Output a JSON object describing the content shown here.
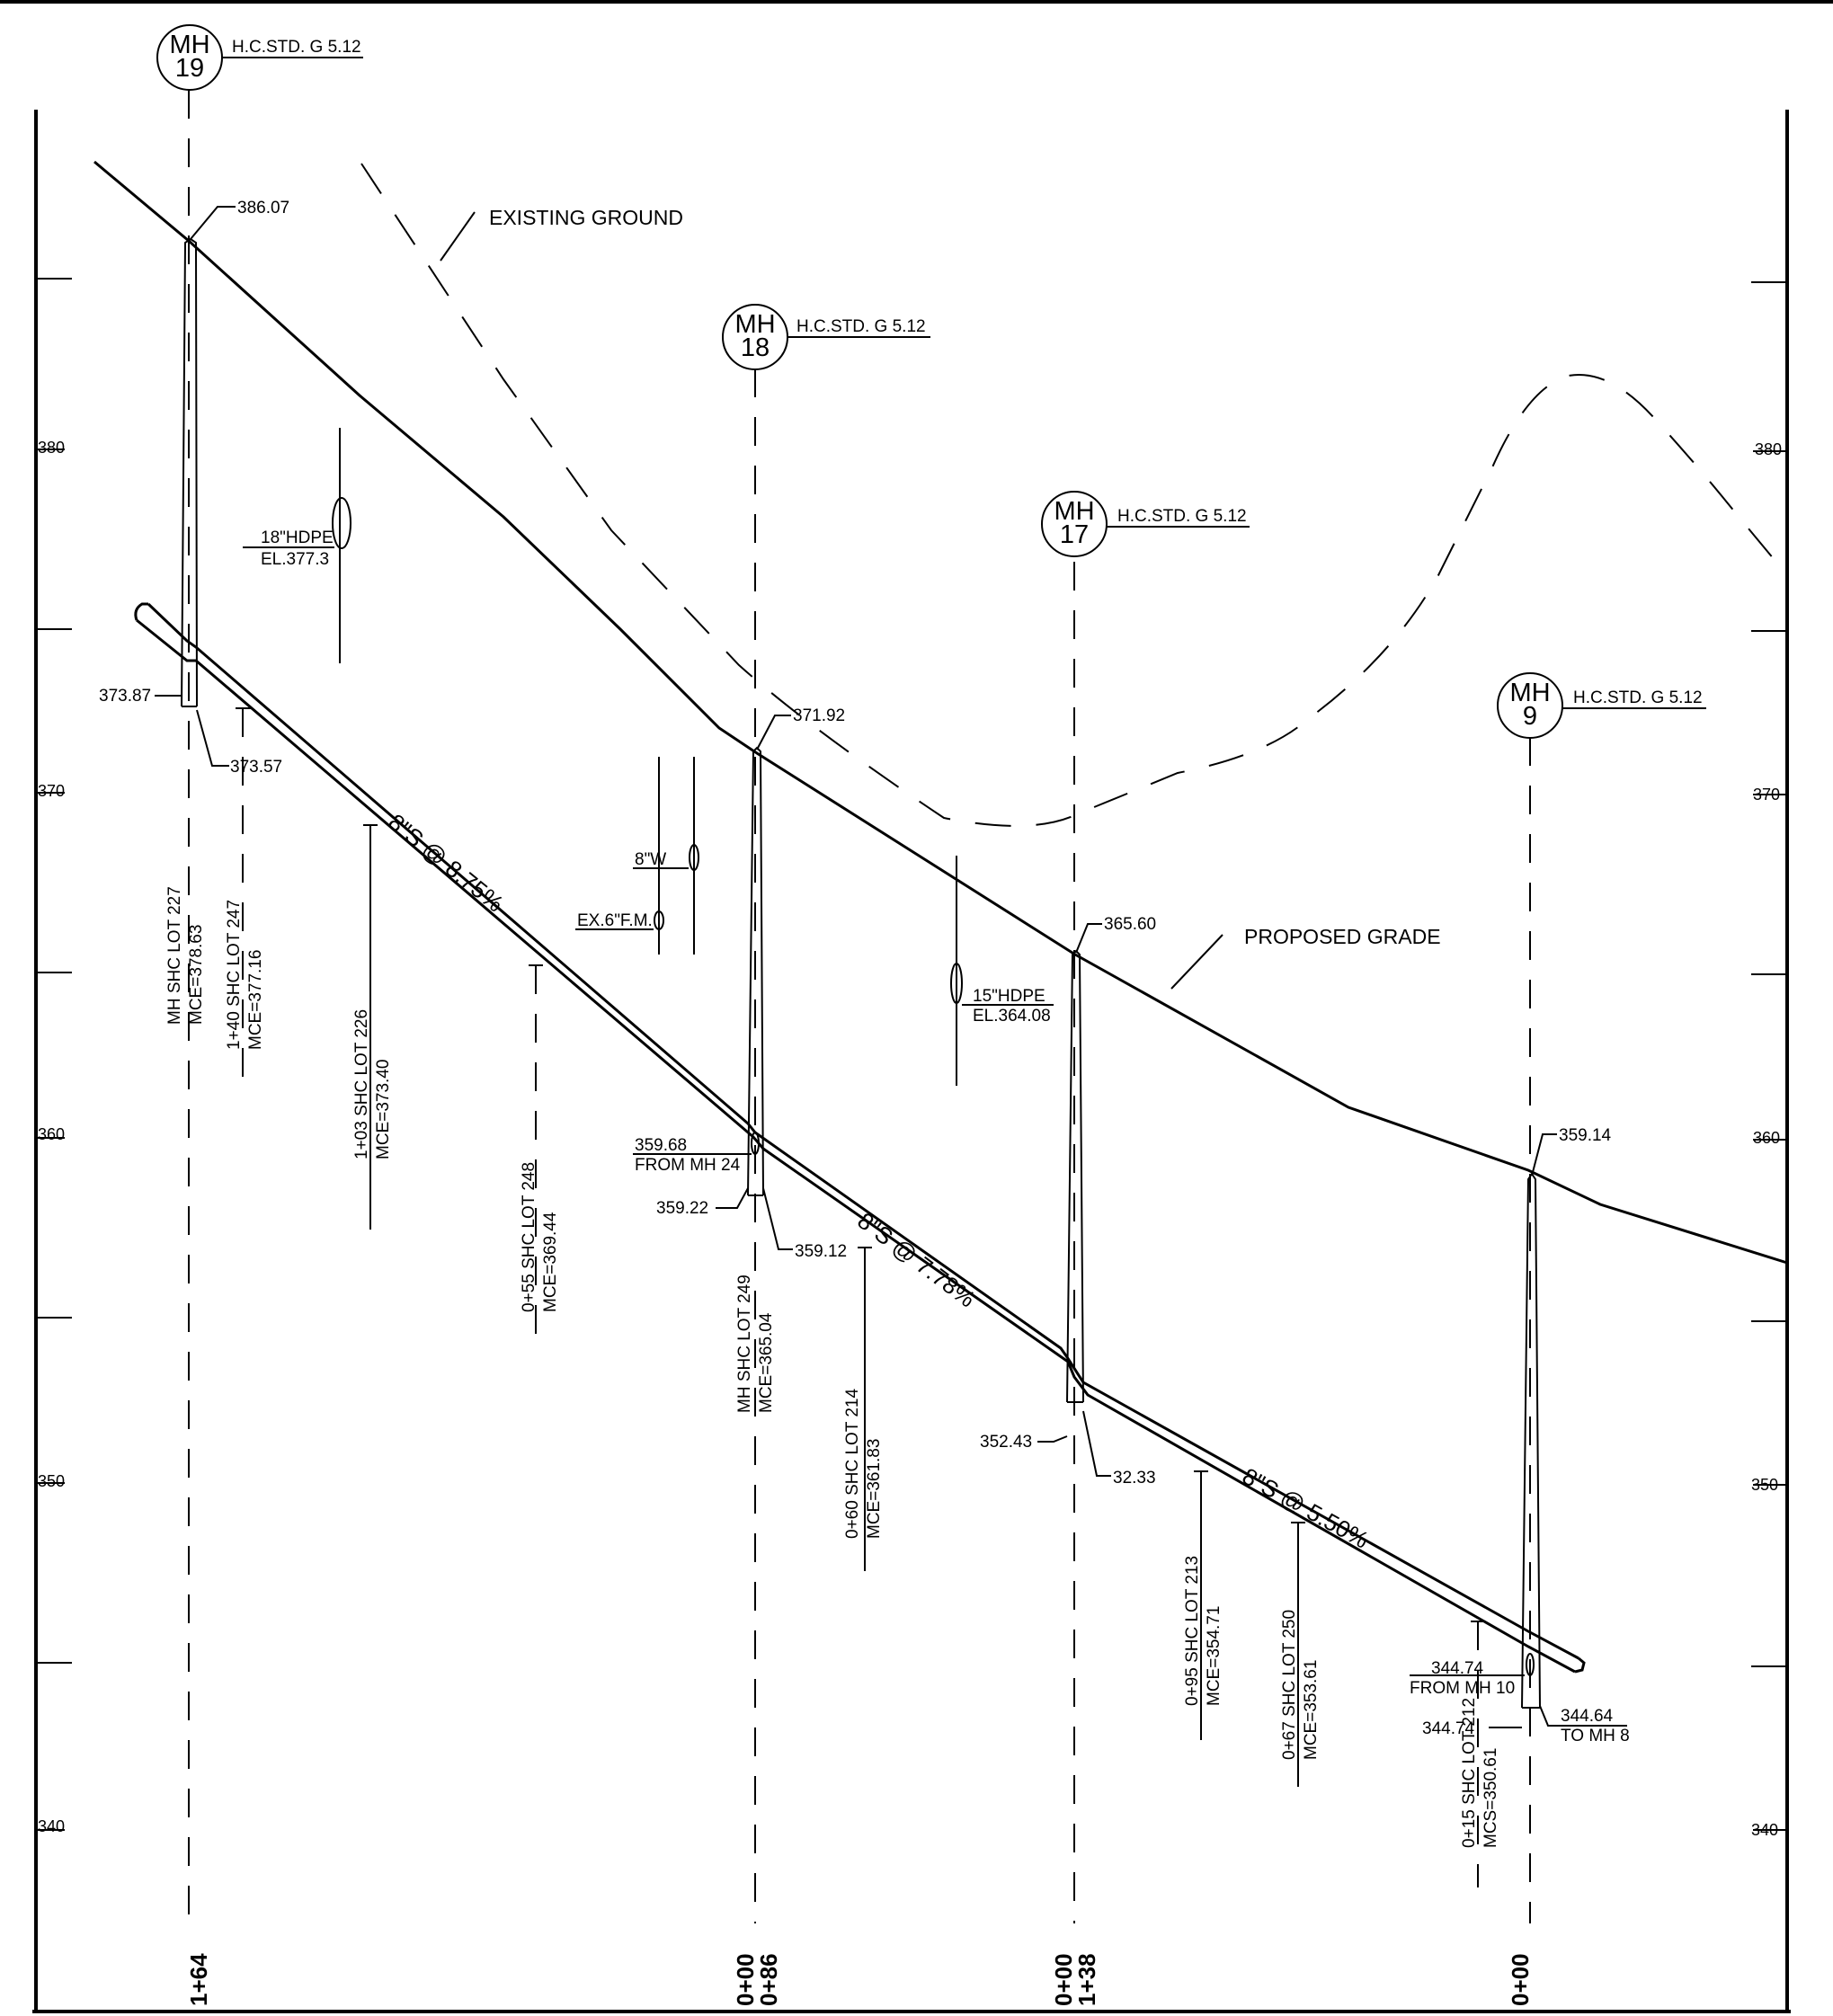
{
  "labels": {
    "existing_ground": "EXISTING GROUND",
    "proposed_grade": "PROPOSED GRADE"
  },
  "elevation_axis": {
    "left_ticks": [
      "380",
      "370",
      "360",
      "350",
      "340"
    ],
    "right_ticks": [
      "380",
      "370",
      "360",
      "350",
      "340"
    ]
  },
  "manholes": [
    {
      "title": "MH",
      "number": "19",
      "std": "H.C.STD. G 5.12",
      "rim": "386.07",
      "inv_in": "373.87",
      "inv_out": "373.57"
    },
    {
      "title": "MH",
      "number": "18",
      "std": "H.C.STD. G 5.12",
      "rim": "371.92",
      "inv_in": "359.22",
      "inv_out": "359.12",
      "lateral_elev": "359.68",
      "lateral_from": "FROM MH 24"
    },
    {
      "title": "MH",
      "number": "17",
      "std": "H.C.STD. G 5.12",
      "rim": "365.60",
      "inv_in": "352.43",
      "inv_out": "32.33"
    },
    {
      "title": "MH",
      "number": "9",
      "std": "H.C.STD. G 5.12",
      "rim": "359.14",
      "inv_in": "344.74",
      "inv_out": "344.64",
      "inv_out_to": "TO MH 8",
      "lateral_elev": "344.74",
      "lateral_from": "FROM MH 10"
    }
  ],
  "pipe_segments": [
    {
      "label": "8\"S @ 8.75%"
    },
    {
      "label": "8\"S @ 7.78%"
    },
    {
      "label": "8\"S @ 5.50%"
    }
  ],
  "crossings": [
    {
      "size": "18\"HDPE",
      "elev": "EL.377.3"
    },
    {
      "size": "8\"W"
    },
    {
      "size": "EX.6\"F.M."
    },
    {
      "size": "15\"HDPE",
      "elev": "EL.364.08"
    }
  ],
  "services": [
    {
      "station": "MH SHC LOT 227",
      "mce": "MCE=378.63"
    },
    {
      "station": "1+40 SHC LOT 247",
      "mce": "MCE=377.16"
    },
    {
      "station": "1+03 SHC LOT 226",
      "mce": "MCE=373.40"
    },
    {
      "station": "0+55 SHC LOT 248",
      "mce": "MCE=369.44"
    },
    {
      "station": "MH SHC LOT 249",
      "mce": "MCE=365.04"
    },
    {
      "station": "0+60 SHC LOT 214",
      "mce": "MCE=361.83"
    },
    {
      "station": "0+95 SHC LOT 213",
      "mce": "MCE=354.71"
    },
    {
      "station": "0+67 SHC LOT 250",
      "mce": "MCE=353.61"
    },
    {
      "station": "0+15 SHC LOT 212",
      "mce": "MCS=350.61"
    }
  ],
  "stations": [
    "1+64",
    "0+00",
    "0+86",
    "0+00",
    "1+38",
    "0+00"
  ]
}
